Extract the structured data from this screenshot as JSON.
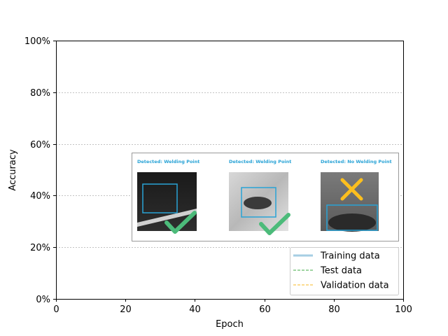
{
  "chart_data": {
    "type": "line",
    "title": "",
    "xlabel": "Epoch",
    "ylabel": "Accuracy",
    "xlim": [
      0,
      100
    ],
    "ylim": [
      0,
      100
    ],
    "x_ticks": [
      0,
      20,
      40,
      60,
      80,
      100
    ],
    "x_tick_labels": [
      "0",
      "20",
      "40",
      "60",
      "80",
      "100"
    ],
    "y_ticks": [
      0,
      20,
      40,
      60,
      80,
      100
    ],
    "y_tick_labels": [
      "0%",
      "20%",
      "40%",
      "60%",
      "80%",
      "100%"
    ],
    "grid": "horizontal dashed",
    "legend_position": "lower-right",
    "series": [
      {
        "name": "Training data",
        "color": "#a6cee3",
        "style": "solid",
        "values": []
      },
      {
        "name": "Test data",
        "color": "#66bb6a",
        "style": "dashed",
        "values": []
      },
      {
        "name": "Validation data",
        "color": "#f9c74f",
        "style": "dashed",
        "values": []
      }
    ]
  },
  "inset": {
    "panels": [
      {
        "caption": "Detected: Welding Point",
        "result": "check-icon"
      },
      {
        "caption": "Detected: Welding Point",
        "result": "check-icon"
      },
      {
        "caption": "Detected: No Welding Point",
        "result": "cross-icon"
      }
    ],
    "caption_color": "#29a3d6",
    "box_color": "#29a3d6",
    "check_color": "#4cbb7a",
    "cross_color": "#fcbf1e"
  }
}
